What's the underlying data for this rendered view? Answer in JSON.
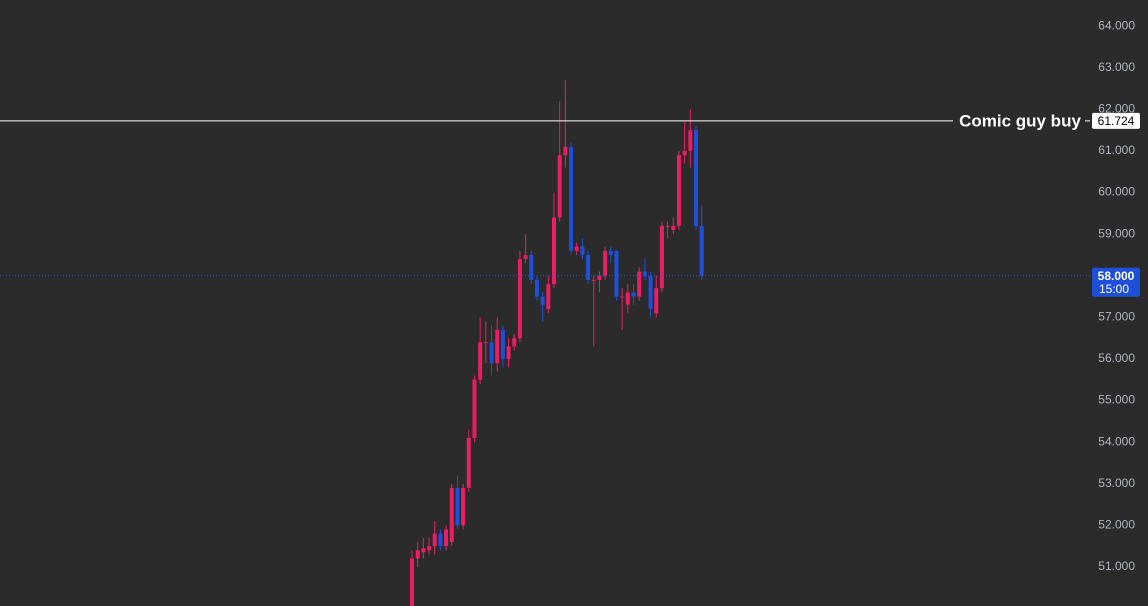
{
  "chart_data": {
    "type": "candlestick",
    "ylim": [
      50.06,
      64.63
    ],
    "yticks": [
      {
        "value": 51,
        "label": "51.000"
      },
      {
        "value": 52,
        "label": "52.000"
      },
      {
        "value": 53,
        "label": "53.000"
      },
      {
        "value": 54,
        "label": "54.000"
      },
      {
        "value": 55,
        "label": "55.000"
      },
      {
        "value": 56,
        "label": "56.000"
      },
      {
        "value": 57,
        "label": "57.000"
      },
      {
        "value": 58,
        "label": "58.000"
      },
      {
        "value": 59,
        "label": "59.000"
      },
      {
        "value": 60,
        "label": "60.000"
      },
      {
        "value": 61,
        "label": "61.000"
      },
      {
        "value": 62,
        "label": "62.000"
      },
      {
        "value": 63,
        "label": "63.000"
      },
      {
        "value": 64,
        "label": "64.000"
      }
    ],
    "up_color": "#e91e63",
    "down_color": "#1e4fd8",
    "open": [
      50.0,
      51.2,
      51.35,
      51.4,
      51.5,
      51.8,
      51.5,
      51.6,
      52.9,
      52.0,
      52.9,
      54.1,
      55.5,
      56.4,
      56.4,
      55.9,
      56.7,
      56.0,
      56.3,
      56.5,
      58.4,
      58.5,
      57.9,
      57.5,
      57.2,
      57.8,
      59.4,
      60.9,
      61.1,
      58.6,
      58.7,
      58.5,
      57.9,
      57.9,
      58.0,
      58.6,
      58.6,
      57.5,
      57.3,
      57.6,
      57.5,
      58.1,
      58.0,
      57.1,
      57.7,
      59.2,
      59.1,
      59.2,
      60.9,
      61.0,
      61.5,
      59.2
    ],
    "high": [
      51.4,
      51.6,
      51.7,
      51.7,
      52.1,
      51.9,
      52.0,
      53.0,
      53.2,
      53.0,
      54.3,
      55.6,
      57.0,
      56.9,
      56.8,
      57.0,
      56.8,
      56.5,
      56.6,
      58.6,
      59.0,
      58.6,
      58.0,
      57.6,
      58.0,
      60.0,
      62.2,
      62.7,
      61.2,
      58.8,
      58.9,
      58.6,
      58.0,
      58.1,
      58.7,
      58.7,
      58.6,
      57.7,
      57.8,
      57.8,
      58.2,
      58.4,
      58.1,
      58.0,
      59.3,
      59.3,
      59.4,
      61.0,
      61.7,
      62.0,
      61.6,
      59.7
    ],
    "low": [
      49.9,
      51.0,
      51.2,
      51.3,
      51.3,
      51.4,
      51.4,
      51.5,
      51.9,
      51.9,
      52.8,
      54.0,
      55.4,
      55.9,
      55.6,
      55.7,
      55.8,
      55.8,
      56.2,
      56.4,
      58.3,
      57.8,
      57.4,
      56.9,
      57.1,
      57.7,
      59.3,
      60.6,
      58.5,
      58.5,
      58.4,
      57.8,
      56.3,
      57.6,
      57.9,
      58.3,
      57.4,
      56.7,
      57.1,
      57.3,
      57.4,
      57.9,
      57.0,
      57.0,
      57.6,
      58.9,
      59.0,
      59.1,
      60.7,
      60.6,
      59.1,
      57.9
    ],
    "close": [
      51.2,
      51.4,
      51.45,
      51.5,
      51.8,
      51.5,
      51.9,
      52.9,
      52.0,
      52.9,
      54.1,
      55.5,
      56.4,
      56.4,
      55.9,
      56.7,
      56.0,
      56.3,
      56.5,
      58.4,
      58.5,
      57.9,
      57.5,
      57.3,
      57.8,
      59.4,
      60.9,
      61.1,
      58.6,
      58.7,
      58.5,
      57.9,
      57.9,
      58.0,
      58.6,
      58.5,
      57.5,
      57.5,
      57.6,
      57.5,
      58.1,
      58.0,
      57.2,
      57.7,
      59.2,
      59.2,
      59.2,
      60.9,
      61.0,
      61.5,
      59.2,
      58.0
    ],
    "annotation": {
      "label": "Comic guy buy",
      "value": 61.724,
      "value_label": "61.724"
    },
    "last_price": {
      "value": 58.0,
      "value_label": "58.000",
      "countdown": "15:00"
    }
  }
}
